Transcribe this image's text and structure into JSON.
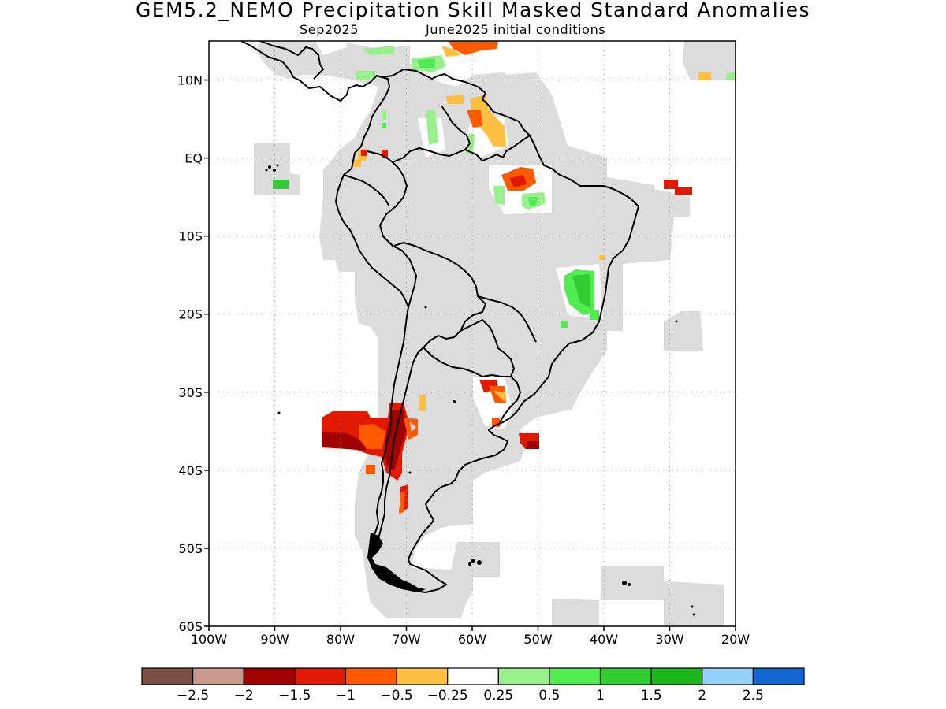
{
  "title": "GEM5.2_NEMO Precipitation Skill Masked Standard Anomalies",
  "subtitle_left": "Sep2025",
  "subtitle_right": "June2025 initial conditions",
  "map": {
    "lon_range": [
      -100,
      -20
    ],
    "lat_range": [
      -60,
      15
    ],
    "lat_ticks": [
      {
        "value": 10,
        "label": "10N"
      },
      {
        "value": 0,
        "label": "EQ"
      },
      {
        "value": -10,
        "label": "10S"
      },
      {
        "value": -20,
        "label": "20S"
      },
      {
        "value": -30,
        "label": "30S"
      },
      {
        "value": -40,
        "label": "40S"
      },
      {
        "value": -50,
        "label": "50S"
      },
      {
        "value": -60,
        "label": "60S"
      }
    ],
    "lon_ticks": [
      {
        "value": -100,
        "label": "100W"
      },
      {
        "value": -90,
        "label": "90W"
      },
      {
        "value": -80,
        "label": "80W"
      },
      {
        "value": -70,
        "label": "70W"
      },
      {
        "value": -60,
        "label": "60W"
      },
      {
        "value": -50,
        "label": "50W"
      },
      {
        "value": -40,
        "label": "40W"
      },
      {
        "value": -30,
        "label": "30W"
      },
      {
        "value": -20,
        "label": "20W"
      }
    ],
    "grid": "dotted",
    "mask_color": "#dcdcdc",
    "coast_color": "#000000"
  },
  "colorbar": {
    "colors": [
      "#7a4f45",
      "#c9988b",
      "#a00000",
      "#e01a00",
      "#ff5a00",
      "#ffbf40",
      "#ffffff",
      "#98f08c",
      "#52eb52",
      "#32cd32",
      "#1eb41e",
      "#96d2fa",
      "#1464d2"
    ],
    "labels": [
      "-2.5",
      "-2",
      "-1.5",
      "-1",
      "-0.5",
      "-0.25",
      "0.25",
      "0.5",
      "1",
      "1.5",
      "2",
      "2.5"
    ]
  },
  "anomaly_regions": [
    {
      "name": "central-chile-argentina-dry",
      "value": -1.5,
      "lon": [
        -83,
        -70
      ],
      "lat": [
        -42,
        -31
      ]
    },
    {
      "name": "amazon-mouth-dry",
      "value": -0.75,
      "lon": [
        -55,
        -50
      ],
      "lat": [
        -4,
        0
      ]
    },
    {
      "name": "southern-brazil-dry",
      "value": -1.0,
      "lon": [
        -58,
        -54
      ],
      "lat": [
        -33,
        -28
      ]
    },
    {
      "name": "uruguay-coast-dry",
      "value": -1.5,
      "lon": [
        -51,
        -48
      ],
      "lat": [
        -38,
        -36
      ]
    },
    {
      "name": "northeast-brazil-wet",
      "value": 1.0,
      "lon": [
        -46,
        -41
      ],
      "lat": [
        -20,
        -14
      ]
    },
    {
      "name": "atlantic-equatorial-dry",
      "value": -1.5,
      "lon": [
        -31,
        -27
      ],
      "lat": [
        -4,
        -2
      ]
    }
  ]
}
